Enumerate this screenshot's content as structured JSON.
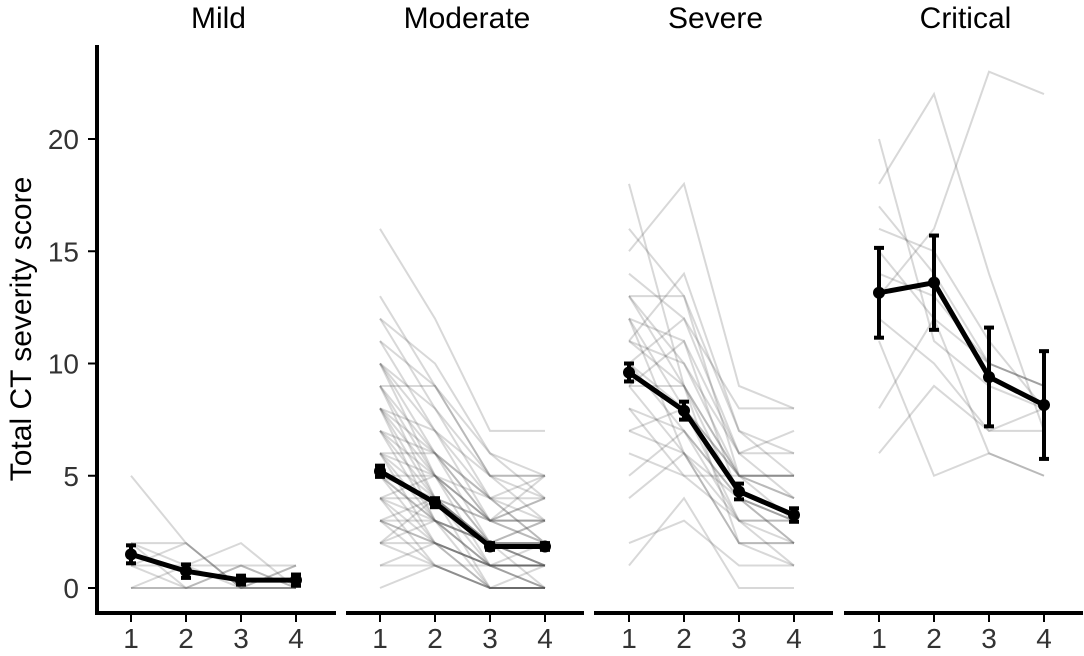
{
  "chart_data": {
    "type": "line",
    "ylabel": "Total CT severity score",
    "xlabel": "",
    "ylim": [
      0,
      24
    ],
    "yticks": [
      0,
      5,
      10,
      15,
      20
    ],
    "xticks": [
      "1",
      "2",
      "3",
      "4"
    ],
    "grid": false,
    "colors": {
      "mean_line": "#000000",
      "individual_line": "#4d4d4d",
      "axis": "#000000",
      "tick_text": "#333333"
    },
    "panels": [
      {
        "title": "Mild",
        "mean": [
          1.5,
          0.75,
          0.35,
          0.35
        ],
        "err": [
          0.4,
          0.3,
          0.2,
          0.25
        ],
        "individuals": [
          [
            5,
            2,
            0,
            0
          ],
          [
            2,
            2,
            0,
            0
          ],
          [
            1,
            0,
            0,
            0
          ],
          [
            2,
            1,
            1,
            1
          ],
          [
            1,
            1,
            2,
            0
          ],
          [
            0,
            1,
            0,
            1
          ],
          [
            2,
            0,
            1,
            0
          ],
          [
            0,
            0,
            0,
            0
          ],
          [
            1,
            2,
            0,
            1
          ],
          [
            0,
            0,
            1,
            0
          ]
        ]
      },
      {
        "title": "Moderate",
        "mean": [
          5.2,
          3.8,
          1.85,
          1.85
        ],
        "err": [
          0.25,
          0.2,
          0.15,
          0.15
        ],
        "individuals": [
          [
            16,
            12,
            7,
            7
          ],
          [
            13,
            9,
            5,
            5
          ],
          [
            12,
            8,
            4,
            5
          ],
          [
            11,
            7,
            3,
            2
          ],
          [
            10,
            6,
            2,
            1
          ],
          [
            10,
            8,
            5,
            4
          ],
          [
            9,
            6,
            3,
            3
          ],
          [
            9,
            5,
            2,
            0
          ],
          [
            8,
            6,
            4,
            3
          ],
          [
            8,
            5,
            2,
            1
          ],
          [
            8,
            4,
            1,
            1
          ],
          [
            7,
            5,
            3,
            4
          ],
          [
            7,
            4,
            2,
            2
          ],
          [
            7,
            3,
            1,
            0
          ],
          [
            6,
            5,
            3,
            2
          ],
          [
            6,
            4,
            2,
            3
          ],
          [
            6,
            3,
            1,
            1
          ],
          [
            6,
            2,
            0,
            0
          ],
          [
            5,
            4,
            2,
            2
          ],
          [
            5,
            3,
            2,
            1
          ],
          [
            5,
            3,
            1,
            0
          ],
          [
            5,
            2,
            1,
            2
          ],
          [
            4,
            4,
            3,
            3
          ],
          [
            4,
            3,
            2,
            1
          ],
          [
            4,
            2,
            1,
            1
          ],
          [
            4,
            1,
            0,
            0
          ],
          [
            3,
            3,
            2,
            2
          ],
          [
            3,
            2,
            1,
            1
          ],
          [
            3,
            2,
            0,
            0
          ],
          [
            3,
            1,
            1,
            0
          ],
          [
            2,
            2,
            1,
            1
          ],
          [
            2,
            1,
            0,
            0
          ],
          [
            2,
            3,
            2,
            2
          ],
          [
            1,
            1,
            0,
            0
          ],
          [
            1,
            2,
            1,
            1
          ],
          [
            0,
            1,
            0,
            0
          ],
          [
            12,
            10,
            6,
            4
          ],
          [
            11,
            9,
            6,
            5
          ],
          [
            10,
            7,
            4,
            2
          ],
          [
            9,
            9,
            5,
            3
          ],
          [
            8,
            7,
            5,
            5
          ],
          [
            7,
            6,
            4,
            4
          ],
          [
            6,
            6,
            3,
            3
          ],
          [
            5,
            5,
            4,
            2
          ],
          [
            4,
            5,
            3,
            5
          ],
          [
            3,
            4,
            3,
            4
          ],
          [
            2,
            4,
            2,
            3
          ],
          [
            10,
            5,
            1,
            1
          ],
          [
            9,
            4,
            0,
            0
          ],
          [
            8,
            3,
            0,
            1
          ]
        ]
      },
      {
        "title": "Severe",
        "mean": [
          9.6,
          7.9,
          4.3,
          3.25
        ],
        "err": [
          0.4,
          0.4,
          0.35,
          0.3
        ],
        "individuals": [
          [
            18,
            9,
            5,
            3
          ],
          [
            16,
            13,
            7,
            6
          ],
          [
            15,
            18,
            9,
            8
          ],
          [
            14,
            12,
            8,
            8
          ],
          [
            13,
            13,
            5,
            5
          ],
          [
            13,
            10,
            6,
            4
          ],
          [
            12,
            11,
            4,
            2
          ],
          [
            12,
            8,
            3,
            3
          ],
          [
            11,
            10,
            5,
            5
          ],
          [
            11,
            9,
            4,
            3
          ],
          [
            10,
            12,
            6,
            7
          ],
          [
            10,
            8,
            5,
            5
          ],
          [
            10,
            7,
            3,
            2
          ],
          [
            9,
            9,
            5,
            4
          ],
          [
            9,
            6,
            2,
            1
          ],
          [
            8,
            7,
            4,
            3
          ],
          [
            8,
            5,
            3,
            3
          ],
          [
            7,
            8,
            5,
            4
          ],
          [
            7,
            6,
            2,
            2
          ],
          [
            6,
            5,
            5,
            5
          ],
          [
            5,
            7,
            4,
            3
          ],
          [
            4,
            6,
            3,
            1
          ],
          [
            2,
            3,
            1,
            1
          ],
          [
            1,
            4,
            0,
            0
          ],
          [
            11,
            14,
            7,
            5
          ],
          [
            9,
            11,
            6,
            6
          ],
          [
            13,
            9,
            2,
            2
          ],
          [
            12,
            6,
            4,
            2
          ]
        ]
      },
      {
        "title": "Critical",
        "mean": [
          13.15,
          13.6,
          9.4,
          8.15
        ],
        "err": [
          2.0,
          2.1,
          2.2,
          2.4
        ],
        "individuals": [
          [
            20,
            11,
            9,
            8
          ],
          [
            18,
            22,
            14,
            7
          ],
          [
            17,
            14,
            10,
            9
          ],
          [
            16,
            15,
            11,
            8
          ],
          [
            14,
            13,
            10,
            9
          ],
          [
            12,
            10,
            7,
            7
          ],
          [
            11,
            5,
            6,
            5
          ],
          [
            8,
            12,
            6,
            5
          ],
          [
            6,
            9,
            7,
            8
          ],
          [
            13,
            16,
            23,
            22
          ],
          [
            15,
            12,
            10,
            9
          ]
        ]
      }
    ]
  }
}
